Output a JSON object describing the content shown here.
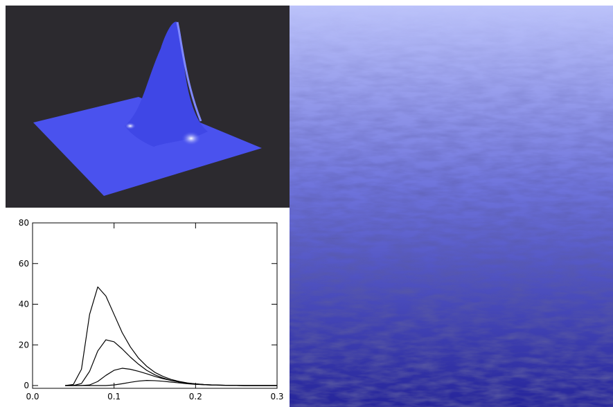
{
  "chart_data": {
    "type": "line",
    "x": [
      0.04,
      0.05,
      0.06,
      0.07,
      0.08,
      0.09,
      0.1,
      0.11,
      0.12,
      0.13,
      0.14,
      0.15,
      0.16,
      0.17,
      0.18,
      0.19,
      0.2,
      0.21,
      0.22,
      0.23,
      0.24,
      0.25,
      0.26,
      0.27,
      0.28,
      0.29,
      0.3
    ],
    "series": [
      {
        "color": "#000000",
        "values": [
          0,
          0.5,
          8,
          35,
          48.5,
          44,
          35,
          26,
          19,
          13.5,
          9.5,
          6.5,
          4.5,
          3,
          2,
          1.3,
          0.8,
          0.5,
          0.3,
          0.2,
          0.1,
          0.05,
          0,
          0,
          0,
          0,
          0
        ]
      },
      {
        "color": "#000000",
        "values": [
          0,
          0,
          1,
          7,
          17,
          22.5,
          21.5,
          18,
          14,
          10.5,
          7.5,
          5.3,
          3.7,
          2.5,
          1.7,
          1.1,
          0.7,
          0.4,
          0.25,
          0.15,
          0.1,
          0.05,
          0,
          0,
          0,
          0,
          0
        ]
      },
      {
        "color": "#000000",
        "values": [
          0,
          0,
          0,
          0.3,
          2,
          5,
          7.5,
          8.5,
          8,
          7,
          5.8,
          4.5,
          3.4,
          2.5,
          1.8,
          1.2,
          0.8,
          0.5,
          0.3,
          0.2,
          0.1,
          0.05,
          0,
          0,
          0,
          0,
          0
        ]
      },
      {
        "color": "#000000",
        "values": [
          0,
          0,
          0,
          0,
          0,
          0,
          0.3,
          0.9,
          1.6,
          2.2,
          2.5,
          2.4,
          2.1,
          1.7,
          1.3,
          0.9,
          0.6,
          0.4,
          0.25,
          0.15,
          0.1,
          0.05,
          0,
          0,
          0,
          0,
          0
        ]
      }
    ],
    "xlim": [
      0,
      0.3
    ],
    "xticks": [
      {
        "value": 0,
        "label": "0.0"
      },
      0.1,
      0.2,
      0.3
    ],
    "ylim": [
      0,
      80
    ],
    "yticks": [
      0,
      20,
      40,
      60,
      80
    ]
  }
}
